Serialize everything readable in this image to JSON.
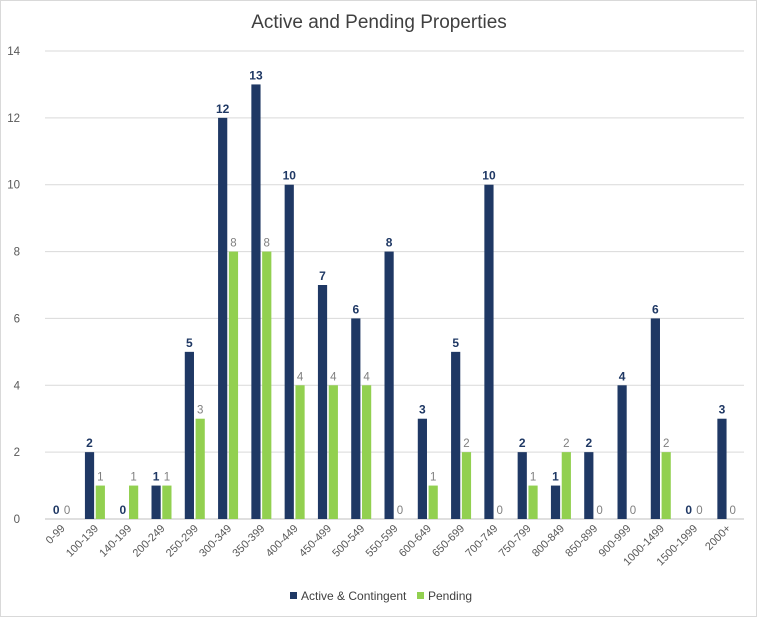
{
  "chart_data": {
    "type": "bar",
    "title": "Active and Pending Properties",
    "xlabel": "",
    "ylabel": "",
    "ylim": [
      0,
      14
    ],
    "y_ticks": [
      0,
      2,
      4,
      6,
      8,
      10,
      12,
      14
    ],
    "grid": true,
    "legend_position": "bottom",
    "categories": [
      "0-99",
      "100-139",
      "140-199",
      "200-249",
      "250-299",
      "300-349",
      "350-399",
      "400-449",
      "450-499",
      "500-549",
      "550-599",
      "600-649",
      "650-699",
      "700-749",
      "750-799",
      "800-849",
      "850-899",
      "900-999",
      "1000-1499",
      "1500-1999",
      "2000+"
    ],
    "series": [
      {
        "name": "Active & Contingent",
        "color": "#1f3864",
        "label_color": "#1f3864",
        "values": [
          0,
          2,
          0,
          1,
          5,
          12,
          13,
          10,
          7,
          6,
          8,
          3,
          5,
          10,
          2,
          1,
          2,
          4,
          6,
          0,
          3
        ]
      },
      {
        "name": "Pending",
        "color": "#92d050",
        "label_color": "#7f7f7f",
        "values": [
          0,
          1,
          1,
          1,
          3,
          8,
          8,
          4,
          4,
          4,
          0,
          1,
          2,
          0,
          1,
          2,
          0,
          0,
          2,
          0,
          0
        ]
      }
    ]
  }
}
